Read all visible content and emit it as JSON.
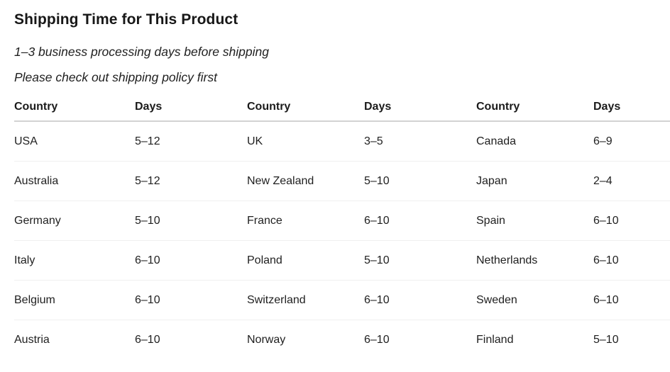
{
  "page": {
    "title": "Shipping Time for This Product",
    "subtitle_line1": "1–3 business processing days before shipping",
    "subtitle_line2": "Please check out shipping policy first"
  },
  "table": {
    "headers": [
      "Country",
      "Days",
      "Country",
      "Days",
      "Country",
      "Days"
    ],
    "rows": [
      [
        "USA",
        "5–12",
        "UK",
        "3–5",
        "Canada",
        "6–9"
      ],
      [
        "Australia",
        "5–12",
        "New Zealand",
        "5–10",
        "Japan",
        "2–4"
      ],
      [
        "Germany",
        "5–10",
        "France",
        "6–10",
        "Spain",
        "6–10"
      ],
      [
        "Italy",
        "6–10",
        "Poland",
        "5–10",
        "Netherlands",
        "6–10"
      ],
      [
        "Belgium",
        "6–10",
        "Switzerland",
        "6–10",
        "Sweden",
        "6–10"
      ],
      [
        "Austria",
        "6–10",
        "Norway",
        "6–10",
        "Finland",
        "5–10"
      ]
    ]
  },
  "colors": {
    "background": "#ffffff",
    "text": "#1a1a1a",
    "header_rule": "#d2d2d2",
    "row_rule": "#f0f0f0"
  }
}
